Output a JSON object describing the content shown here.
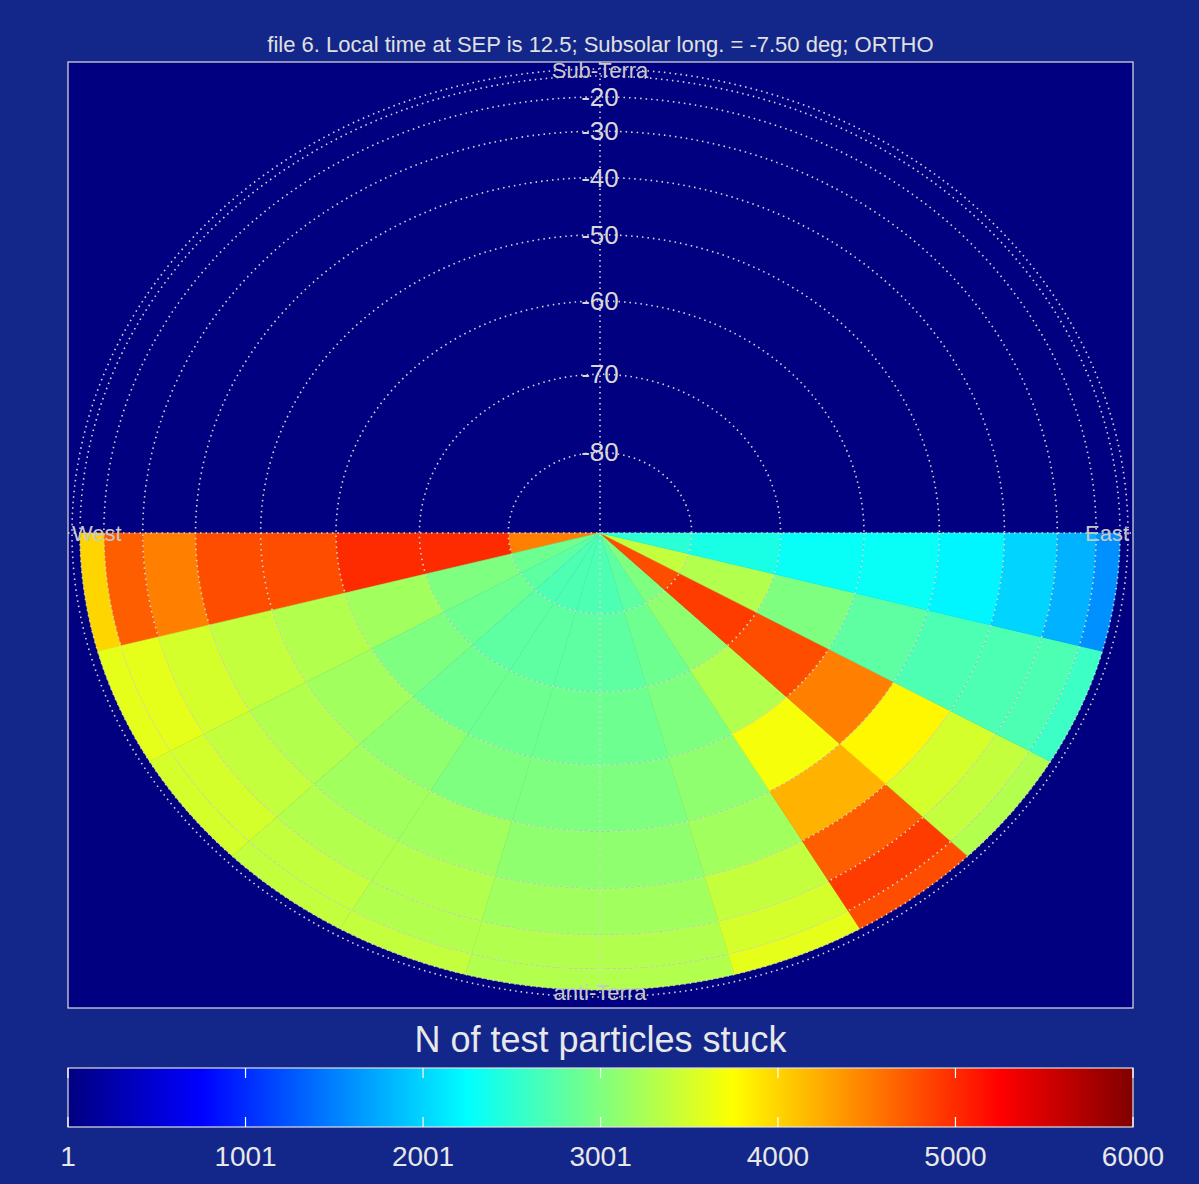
{
  "chart_data": {
    "type": "heatmap",
    "title": "file 6. Local time at SEP is 12.5; Subsolar long. =    -7.50 deg; ORTHO",
    "projection_labels": {
      "top": "Sub-Terra",
      "bottom": "anti-Terra",
      "left": "West",
      "right": "East"
    },
    "lon_edges": [
      -90,
      -75,
      -60,
      -45,
      -30,
      -15,
      0,
      15,
      30,
      45,
      60,
      75,
      90
    ],
    "lat_edges": [
      -90,
      -80,
      -70,
      -60,
      -50,
      -40,
      -30,
      -20,
      -10
    ],
    "latlim": [
      -90,
      0
    ],
    "lat_ticks": [
      -20,
      -30,
      -40,
      -50,
      -60,
      -70,
      -80
    ],
    "cells": [
      [
        4500,
        5000,
        5000,
        4800,
        4800,
        4500,
        4700,
        4000
      ],
      [
        2900,
        3000,
        3200,
        3300,
        3400,
        3500,
        3600,
        3600
      ],
      [
        2800,
        2900,
        3000,
        3200,
        3300,
        3400,
        3500,
        3500
      ],
      [
        2700,
        2800,
        2900,
        3100,
        3200,
        3300,
        3400,
        3400
      ],
      [
        2700,
        2800,
        2900,
        3000,
        3200,
        3300,
        3300,
        3400
      ],
      [
        2700,
        2800,
        2900,
        3000,
        3100,
        3200,
        3300,
        3300
      ],
      [
        2700,
        2800,
        2900,
        3000,
        3100,
        3200,
        3300,
        3300
      ],
      [
        2800,
        2900,
        3000,
        3100,
        3200,
        3400,
        3500,
        3600
      ],
      [
        3000,
        3100,
        3300,
        3700,
        4200,
        4700,
        4900,
        4800
      ],
      [
        4800,
        4900,
        4800,
        4500,
        3800,
        3500,
        3400,
        3300
      ],
      [
        3400,
        3300,
        3000,
        2800,
        2700,
        2700,
        2700,
        2600
      ],
      [
        2500,
        2400,
        2300,
        2300,
        2200,
        2000,
        1800,
        1600
      ]
    ],
    "colorbar": {
      "label": "N of test particles stuck",
      "range": [
        1,
        6000
      ],
      "ticks": [
        1,
        1001,
        2001,
        3001,
        4000,
        5000,
        6000
      ]
    }
  }
}
